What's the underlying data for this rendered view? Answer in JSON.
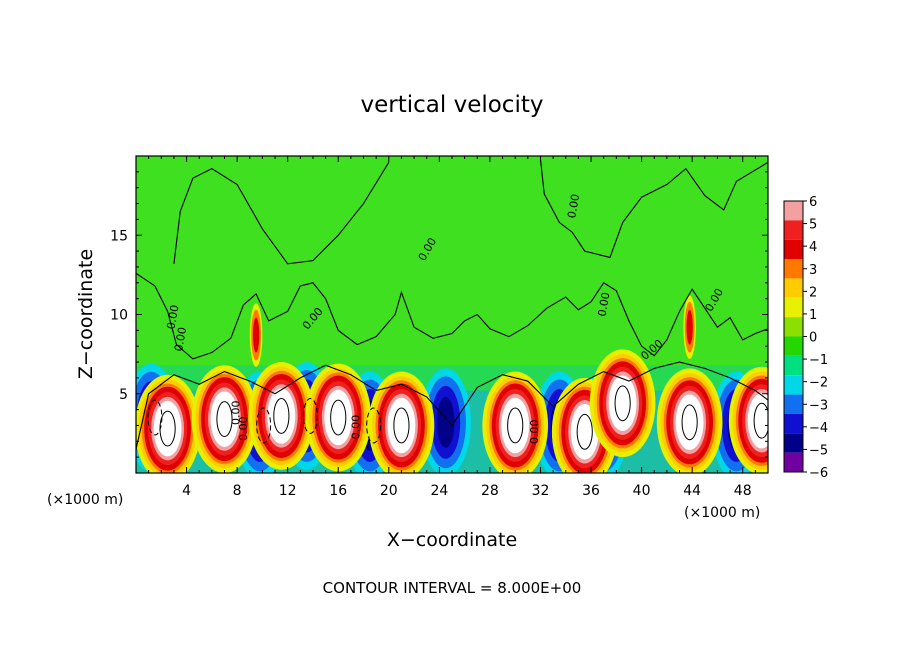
{
  "chart_data": {
    "type": "heatmap",
    "title": "vertical velocity",
    "xlabel": "X−coordinate",
    "ylabel": "Z−coordinate",
    "x_multiplier_label": "(×1000 m)",
    "z_multiplier_label": "(×1000 m)",
    "xlim": [
      0,
      50
    ],
    "ylim": [
      0,
      20
    ],
    "x_ticks": [
      4,
      8,
      12,
      16,
      20,
      24,
      28,
      32,
      36,
      40,
      44,
      48
    ],
    "y_ticks": [
      5,
      10,
      15
    ],
    "colorbar": {
      "ticks": [
        "6",
        "5",
        "4",
        "3",
        "2",
        "1",
        "0",
        "−1",
        "−2",
        "−3",
        "−4",
        "−5",
        "−6"
      ],
      "colors": [
        "#f2a0a0",
        "#f02020",
        "#e00000",
        "#ff7800",
        "#ffcc00",
        "#e6f000",
        "#8ce000",
        "#22d800",
        "#00e080",
        "#00d8e8",
        "#1070f0",
        "#1010d0",
        "#000088",
        "#7000a0"
      ]
    },
    "contour_labels": [
      "0.00",
      "0.00",
      "0.00",
      "0.00",
      "0.00",
      "0.00",
      "0.00",
      "0.00",
      "0.00",
      "0.00",
      "0.00",
      "0.00"
    ],
    "footer": "CONTOUR INTERVAL = 8.000E+00",
    "updraft_maxima": [
      {
        "x": 2.5,
        "z": 2.8,
        "w": 6
      },
      {
        "x": 7.0,
        "z": 3.4,
        "w": 6
      },
      {
        "x": 11.5,
        "z": 3.6,
        "w": 6
      },
      {
        "x": 16.0,
        "z": 3.5,
        "w": 6
      },
      {
        "x": 21.0,
        "z": 3.0,
        "w": 6
      },
      {
        "x": 30.0,
        "z": 3.0,
        "w": 6
      },
      {
        "x": 35.5,
        "z": 2.6,
        "w": 6
      },
      {
        "x": 38.5,
        "z": 4.4,
        "w": 6
      },
      {
        "x": 43.8,
        "z": 3.2,
        "w": 6
      },
      {
        "x": 49.5,
        "z": 3.3,
        "w": 6
      },
      {
        "x": 9.5,
        "z": 8.7,
        "w": 4
      },
      {
        "x": 43.8,
        "z": 9.2,
        "w": 4
      }
    ],
    "downdraft_minima": [
      {
        "x": 1.2,
        "z": 3.5,
        "w": -5
      },
      {
        "x": 9.8,
        "z": 3.0,
        "w": -5
      },
      {
        "x": 13.5,
        "z": 3.6,
        "w": -5
      },
      {
        "x": 18.5,
        "z": 3.0,
        "w": -5
      },
      {
        "x": 24.5,
        "z": 3.2,
        "w": -5
      },
      {
        "x": 33.5,
        "z": 3.0,
        "w": -5
      },
      {
        "x": 37.0,
        "z": 3.0,
        "w": -6
      },
      {
        "x": 47.5,
        "z": 3.0,
        "w": -5
      }
    ]
  }
}
